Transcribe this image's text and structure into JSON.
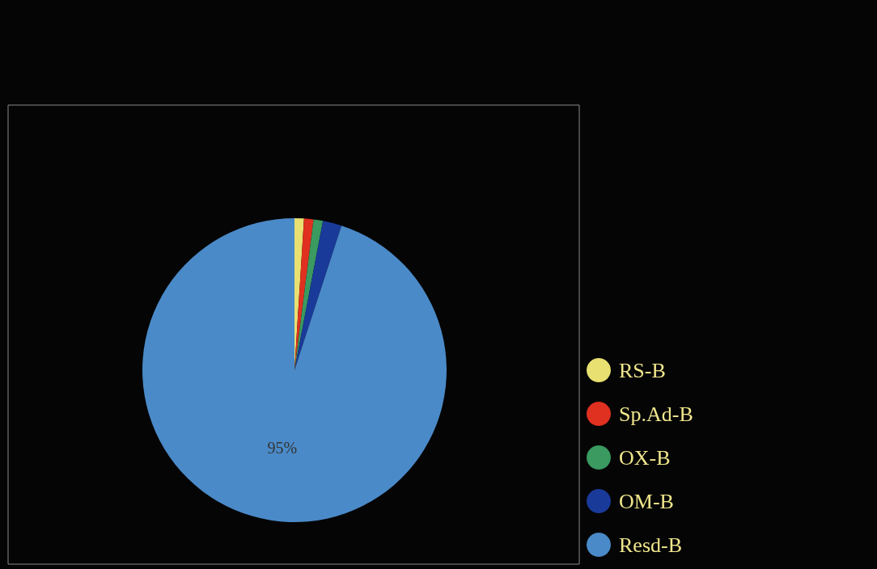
{
  "chart_data": {
    "type": "pie",
    "categories": [
      "RS-B",
      "Sp.Ad-B",
      "OX-B",
      "OM-B",
      "Resd-B"
    ],
    "values": [
      1,
      1,
      1,
      2,
      95
    ],
    "colors": [
      "#e8e070",
      "#e03020",
      "#3a9a60",
      "#1a3a9a",
      "#4a8ac8"
    ],
    "value_labels": [
      null,
      null,
      null,
      null,
      "95%"
    ],
    "legend": "bottom right"
  }
}
